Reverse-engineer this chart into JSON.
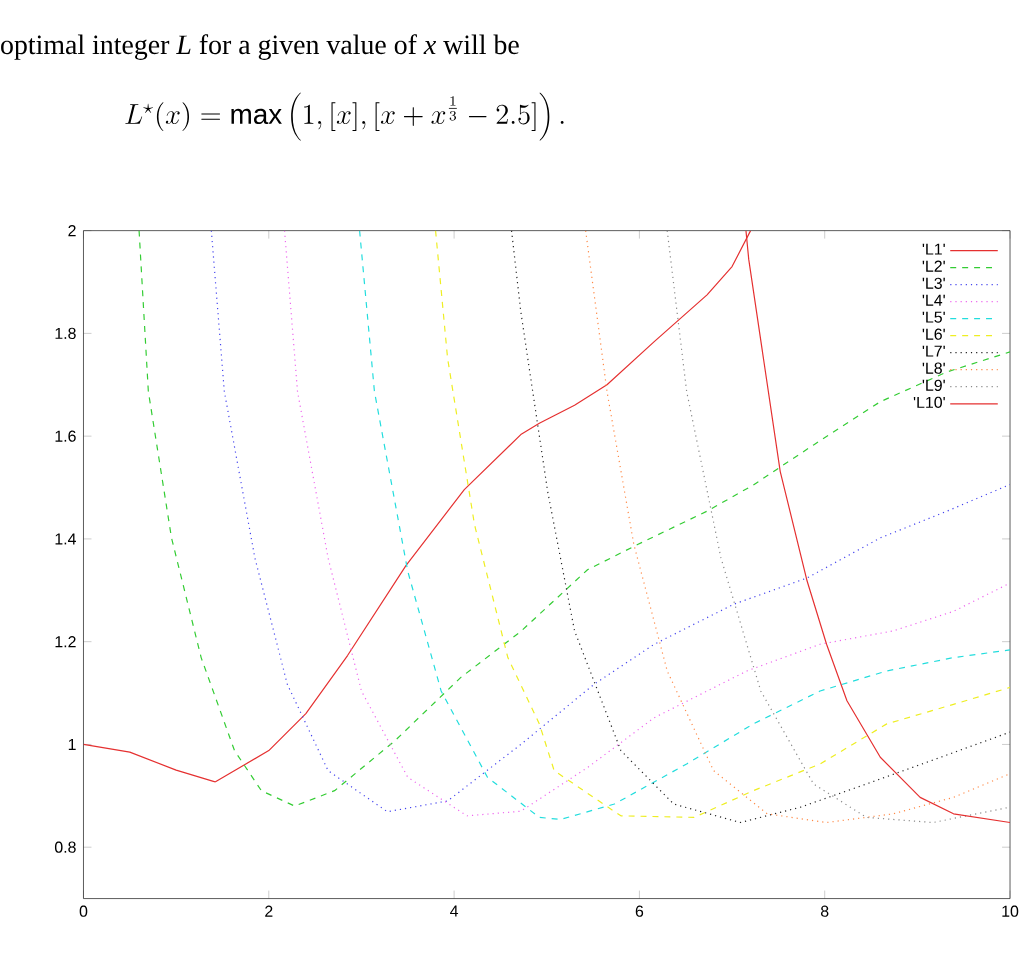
{
  "chart_data": {
    "type": "line",
    "annotations": [
      "optimal integer *L* for a given value of *x* will be",
      "L^\\star(x) = \\max\\left(1, [x], [x+x^{\\frac{1}{3}}-2.5]\\right)."
    ],
    "xlim": [
      0,
      10
    ],
    "ylim": [
      0.7,
      2
    ],
    "xticks": [
      0,
      2,
      4,
      6,
      8,
      10
    ],
    "yticks": [
      0.8,
      1,
      1.2,
      1.4,
      1.6,
      1.8,
      2
    ],
    "legend": "top right",
    "series": [
      {
        "name": "'L1'",
        "color": "#e53030",
        "line_style": "solid",
        "x": [
          0,
          0.5,
          1.0,
          1.42,
          2.0,
          2.4,
          2.85,
          3.48,
          4.11,
          4.72,
          4.92,
          5.3,
          5.65,
          6.16,
          6.73,
          7.0,
          7.2
        ],
        "values": [
          1.0,
          0.985,
          0.95,
          0.927,
          0.988,
          1.06,
          1.173,
          1.348,
          1.496,
          1.603,
          1.625,
          1.66,
          1.7,
          1.784,
          1.875,
          1.93,
          2.0
        ]
      },
      {
        "name": "'L2'",
        "color": "#33cc33",
        "line_style": "dashed",
        "x": [
          0.6,
          0.7,
          0.95,
          1.27,
          1.63,
          1.92,
          2.28,
          2.71,
          3.36,
          4.07,
          4.72,
          5.44,
          5.98,
          6.73,
          7.23,
          7.88,
          8.6,
          9.32,
          10
        ],
        "values": [
          2.0,
          1.687,
          1.402,
          1.169,
          0.988,
          0.91,
          0.88,
          0.91,
          1.007,
          1.13,
          1.22,
          1.34,
          1.389,
          1.454,
          1.505,
          1.583,
          1.667,
          1.725,
          1.764
        ]
      },
      {
        "name": "'L3'",
        "color": "#4444ee",
        "line_style": "dotted",
        "x": [
          1.38,
          1.52,
          1.85,
          2.2,
          2.64,
          3.28,
          3.93,
          4.72,
          5.51,
          6.16,
          7.02,
          7.81,
          8.6,
          9.32,
          10
        ],
        "values": [
          2.0,
          1.687,
          1.363,
          1.117,
          0.949,
          0.869,
          0.89,
          1.0,
          1.117,
          1.195,
          1.273,
          1.324,
          1.402,
          1.454,
          1.506
        ]
      },
      {
        "name": "'L4'",
        "color": "#ee66ee",
        "line_style": "dotted",
        "x": [
          2.17,
          2.31,
          2.64,
          3.0,
          3.5,
          4.14,
          4.72,
          5.44,
          6.16,
          7.16,
          7.95,
          8.74,
          9.39,
          10
        ],
        "values": [
          2.0,
          1.687,
          1.363,
          1.104,
          0.936,
          0.861,
          0.87,
          0.955,
          1.052,
          1.143,
          1.195,
          1.221,
          1.259,
          1.314
        ]
      },
      {
        "name": "'L5'",
        "color": "#22dddd",
        "line_style": "dashed",
        "x": [
          2.98,
          3.14,
          3.5,
          3.86,
          4.36,
          4.92,
          5.15,
          5.73,
          6.51,
          7.23,
          7.95,
          8.67,
          9.39,
          10
        ],
        "values": [
          2.0,
          1.687,
          1.337,
          1.104,
          0.936,
          0.858,
          0.854,
          0.884,
          0.962,
          1.04,
          1.104,
          1.143,
          1.169,
          1.184
        ]
      },
      {
        "name": "'L6'",
        "color": "#eeee22",
        "line_style": "dashed",
        "x": [
          3.8,
          3.93,
          4.22,
          4.58,
          4.92,
          5.08,
          5.8,
          6.59,
          7.23,
          7.95,
          8.67,
          9.39,
          10
        ],
        "values": [
          2.0,
          1.751,
          1.428,
          1.169,
          1.04,
          0.949,
          0.861,
          0.858,
          0.91,
          0.962,
          1.04,
          1.078,
          1.111
        ]
      },
      {
        "name": "'L7'",
        "color": "#222222",
        "line_style": "dotted",
        "x": [
          4.62,
          4.72,
          5.01,
          5.3,
          5.8,
          6.37,
          7.09,
          7.74,
          8.45,
          9.25,
          10
        ],
        "values": [
          2.0,
          1.842,
          1.492,
          1.221,
          0.988,
          0.884,
          0.848,
          0.878,
          0.923,
          0.975,
          1.024
        ]
      },
      {
        "name": "'L8'",
        "color": "#ff8844",
        "line_style": "dotted",
        "x": [
          5.42,
          5.65,
          5.94,
          6.3,
          6.8,
          7.38,
          8.02,
          8.74,
          9.39,
          10
        ],
        "values": [
          2.0,
          1.687,
          1.389,
          1.143,
          0.949,
          0.865,
          0.848,
          0.865,
          0.897,
          0.943
        ]
      },
      {
        "name": "'L9'",
        "color": "#888888",
        "line_style": "dotted",
        "x": [
          6.3,
          6.51,
          6.88,
          7.31,
          7.88,
          8.45,
          9.17,
          10
        ],
        "values": [
          2.0,
          1.687,
          1.363,
          1.104,
          0.923,
          0.858,
          0.848,
          0.878
        ]
      },
      {
        "name": "'L10'",
        "color": "#e53030",
        "line_style": "solid",
        "x": [
          7.15,
          7.18,
          7.52,
          7.81,
          8.02,
          8.24,
          8.6,
          9.03,
          9.39,
          10
        ],
        "values": [
          2.0,
          1.944,
          1.531,
          1.318,
          1.195,
          1.085,
          0.975,
          0.897,
          0.865,
          0.848
        ]
      }
    ]
  }
}
